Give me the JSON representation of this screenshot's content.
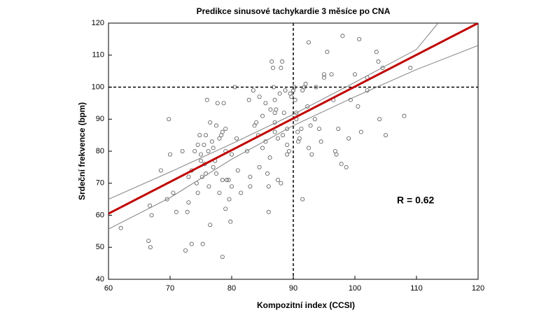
{
  "chart_data": {
    "type": "scatter",
    "title": "Predikce sinusové tachykardie 3 měsíce po CNA",
    "x_label": "Kompozitní index (CCSI)",
    "y_label": "Srdeční frekvence (bpm)",
    "annotation": "R = 0.62",
    "xlim": [
      60,
      120
    ],
    "ylim": [
      40,
      120
    ],
    "xticks": [
      60,
      70,
      80,
      90,
      100,
      110,
      120
    ],
    "yticks": [
      40,
      50,
      60,
      70,
      80,
      90,
      100,
      110,
      120
    ],
    "vline": 90,
    "hline": 100,
    "point_color": "#555555",
    "x": [
      62,
      66.5,
      66.8,
      66.7,
      67,
      68.5,
      69.5,
      69.8,
      70,
      70.5,
      71,
      72,
      72.5,
      72.8,
      73,
      73,
      73.5,
      73.5,
      74,
      74.3,
      74.5,
      74.5,
      74.8,
      75,
      75,
      75.2,
      75.3,
      75.5,
      75.6,
      75.8,
      75.8,
      76,
      76.2,
      76.3,
      76.5,
      76.5,
      76.8,
      77,
      77,
      77.3,
      77.5,
      77.5,
      77.7,
      78,
      78,
      78.3,
      78.5,
      78.5,
      78.5,
      78.7,
      79,
      79,
      79.2,
      79,
      79.5,
      79.6,
      79.8,
      80,
      80,
      80.5,
      80.8,
      81,
      81.5,
      82.5,
      82.8,
      83,
      83,
      83.5,
      83.7,
      84,
      84.3,
      84.5,
      84.5,
      85,
      85,
      85.5,
      85.5,
      85.8,
      86,
      86.2,
      86,
      86.3,
      86.5,
      86.7,
      86.8,
      87,
      87,
      87,
      87,
      87.2,
      87.5,
      87.5,
      87.8,
      88,
      88,
      88.2,
      88.3,
      88.5,
      88.7,
      89,
      89,
      89,
      89.3,
      89.5,
      89.7,
      90,
      90.2,
      90.3,
      90.5,
      90.5,
      90.7,
      90.8,
      91,
      91.3,
      91.5,
      91.5,
      91.8,
      92,
      92.3,
      92.5,
      92.5,
      92.8,
      93,
      93.5,
      93.7,
      94.2,
      94.5,
      95,
      95,
      95.5,
      96.2,
      96.5,
      96.8,
      97,
      97.3,
      97.8,
      98,
      98.6,
      99,
      99.3,
      100,
      100.5,
      100.7,
      101,
      102,
      102,
      103.5,
      103.8,
      104,
      104.5,
      105,
      108,
      109
    ],
    "y": [
      56,
      52,
      50,
      63,
      60,
      74,
      65,
      90,
      79,
      67,
      61,
      80,
      49,
      61,
      64,
      72,
      74,
      51,
      80,
      70,
      67,
      82,
      85,
      79,
      77,
      72,
      51,
      82,
      76,
      85,
      73,
      96,
      80,
      69,
      57,
      89,
      83,
      81,
      75,
      77,
      88,
      73,
      95,
      67,
      84,
      85,
      86,
      71,
      47,
      95,
      87,
      80,
      71,
      62,
      71,
      65,
      58,
      69,
      79,
      100,
      84,
      74,
      67,
      80,
      96,
      69,
      72,
      99,
      88,
      89,
      85,
      97,
      75,
      81,
      91,
      95,
      83,
      73,
      69,
      78,
      61,
      93,
      108,
      106,
      100,
      96,
      92,
      89,
      86,
      93,
      84,
      71,
      98,
      70,
      106,
      108,
      85,
      92,
      99,
      87,
      82,
      79,
      80,
      98,
      97,
      99,
      100,
      96,
      92,
      90,
      86,
      83,
      84,
      87,
      65,
      99,
      100,
      101,
      94,
      81,
      114,
      88,
      79,
      90,
      100,
      87,
      83,
      104,
      103,
      111,
      104,
      96,
      80,
      79,
      87,
      76,
      116,
      75,
      84,
      96,
      104,
      94,
      115,
      86,
      99,
      103,
      111,
      108,
      90,
      106,
      85,
      91,
      106
    ],
    "fit": {
      "color": "#c00000",
      "x": [
        60,
        120
      ],
      "y": [
        60.5,
        120
      ]
    },
    "bands": {
      "color": "#808080",
      "upper": {
        "x": [
          60,
          70,
          80,
          90,
          100,
          110,
          113.5
        ],
        "y": [
          65,
          73.5,
          82.3,
          91.5,
          101.5,
          111.8,
          120
        ]
      },
      "lower": {
        "x": [
          60,
          70,
          80,
          90,
          100,
          110,
          120
        ],
        "y": [
          55.7,
          65.5,
          77.5,
          88,
          97,
          105.5,
          113
        ]
      }
    }
  }
}
